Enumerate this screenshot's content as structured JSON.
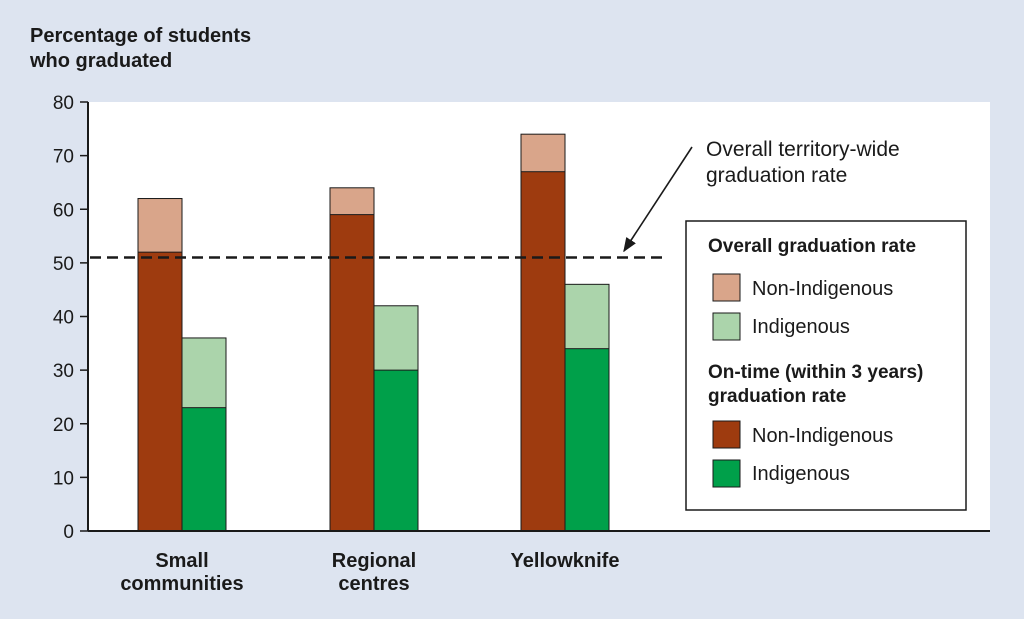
{
  "colors": {
    "background": "#dde4f0",
    "plot_bg": "#ffffff",
    "ontime_non_indigenous": "#9e3b0f",
    "overall_non_indigenous": "#d9a58a",
    "ontime_indigenous": "#00a04a",
    "overall_indigenous": "#abd4ab"
  },
  "chart_data": {
    "type": "bar",
    "title": "",
    "ylabel": "Percentage of students who graduated",
    "ylabel_lines": [
      "Percentage of students",
      "who graduated"
    ],
    "ylim": [
      0,
      80
    ],
    "yticks": [
      0,
      10,
      20,
      30,
      40,
      50,
      60,
      70,
      80
    ],
    "categories": [
      "Small communities",
      "Regional centres",
      "Yellowknife"
    ],
    "category_lines": [
      [
        "Small",
        "communities"
      ],
      [
        "Regional",
        "centres"
      ],
      [
        "Yellowknife"
      ]
    ],
    "series": [
      {
        "name": "Non-Indigenous",
        "group": "On-time (within 3 years) graduation rate",
        "values": [
          52,
          59,
          67
        ]
      },
      {
        "name": "Non-Indigenous",
        "group": "Overall graduation rate",
        "values": [
          62,
          64,
          74
        ]
      },
      {
        "name": "Indigenous",
        "group": "On-time (within 3 years) graduation rate",
        "values": [
          23,
          30,
          34
        ]
      },
      {
        "name": "Indigenous",
        "group": "Overall graduation rate",
        "values": [
          36,
          42,
          46
        ]
      }
    ],
    "reference_line": {
      "value": 51,
      "label": "Overall territory-wide graduation rate",
      "label_lines": [
        "Overall territory-wide",
        "graduation rate"
      ]
    },
    "legend": {
      "position": "right",
      "groups": [
        {
          "title_lines": [
            "Overall graduation rate"
          ],
          "items": [
            "Non-Indigenous",
            "Indigenous"
          ]
        },
        {
          "title_lines": [
            "On-time (within 3 years)",
            "graduation rate"
          ],
          "items": [
            "Non-Indigenous",
            "Indigenous"
          ]
        }
      ]
    }
  }
}
